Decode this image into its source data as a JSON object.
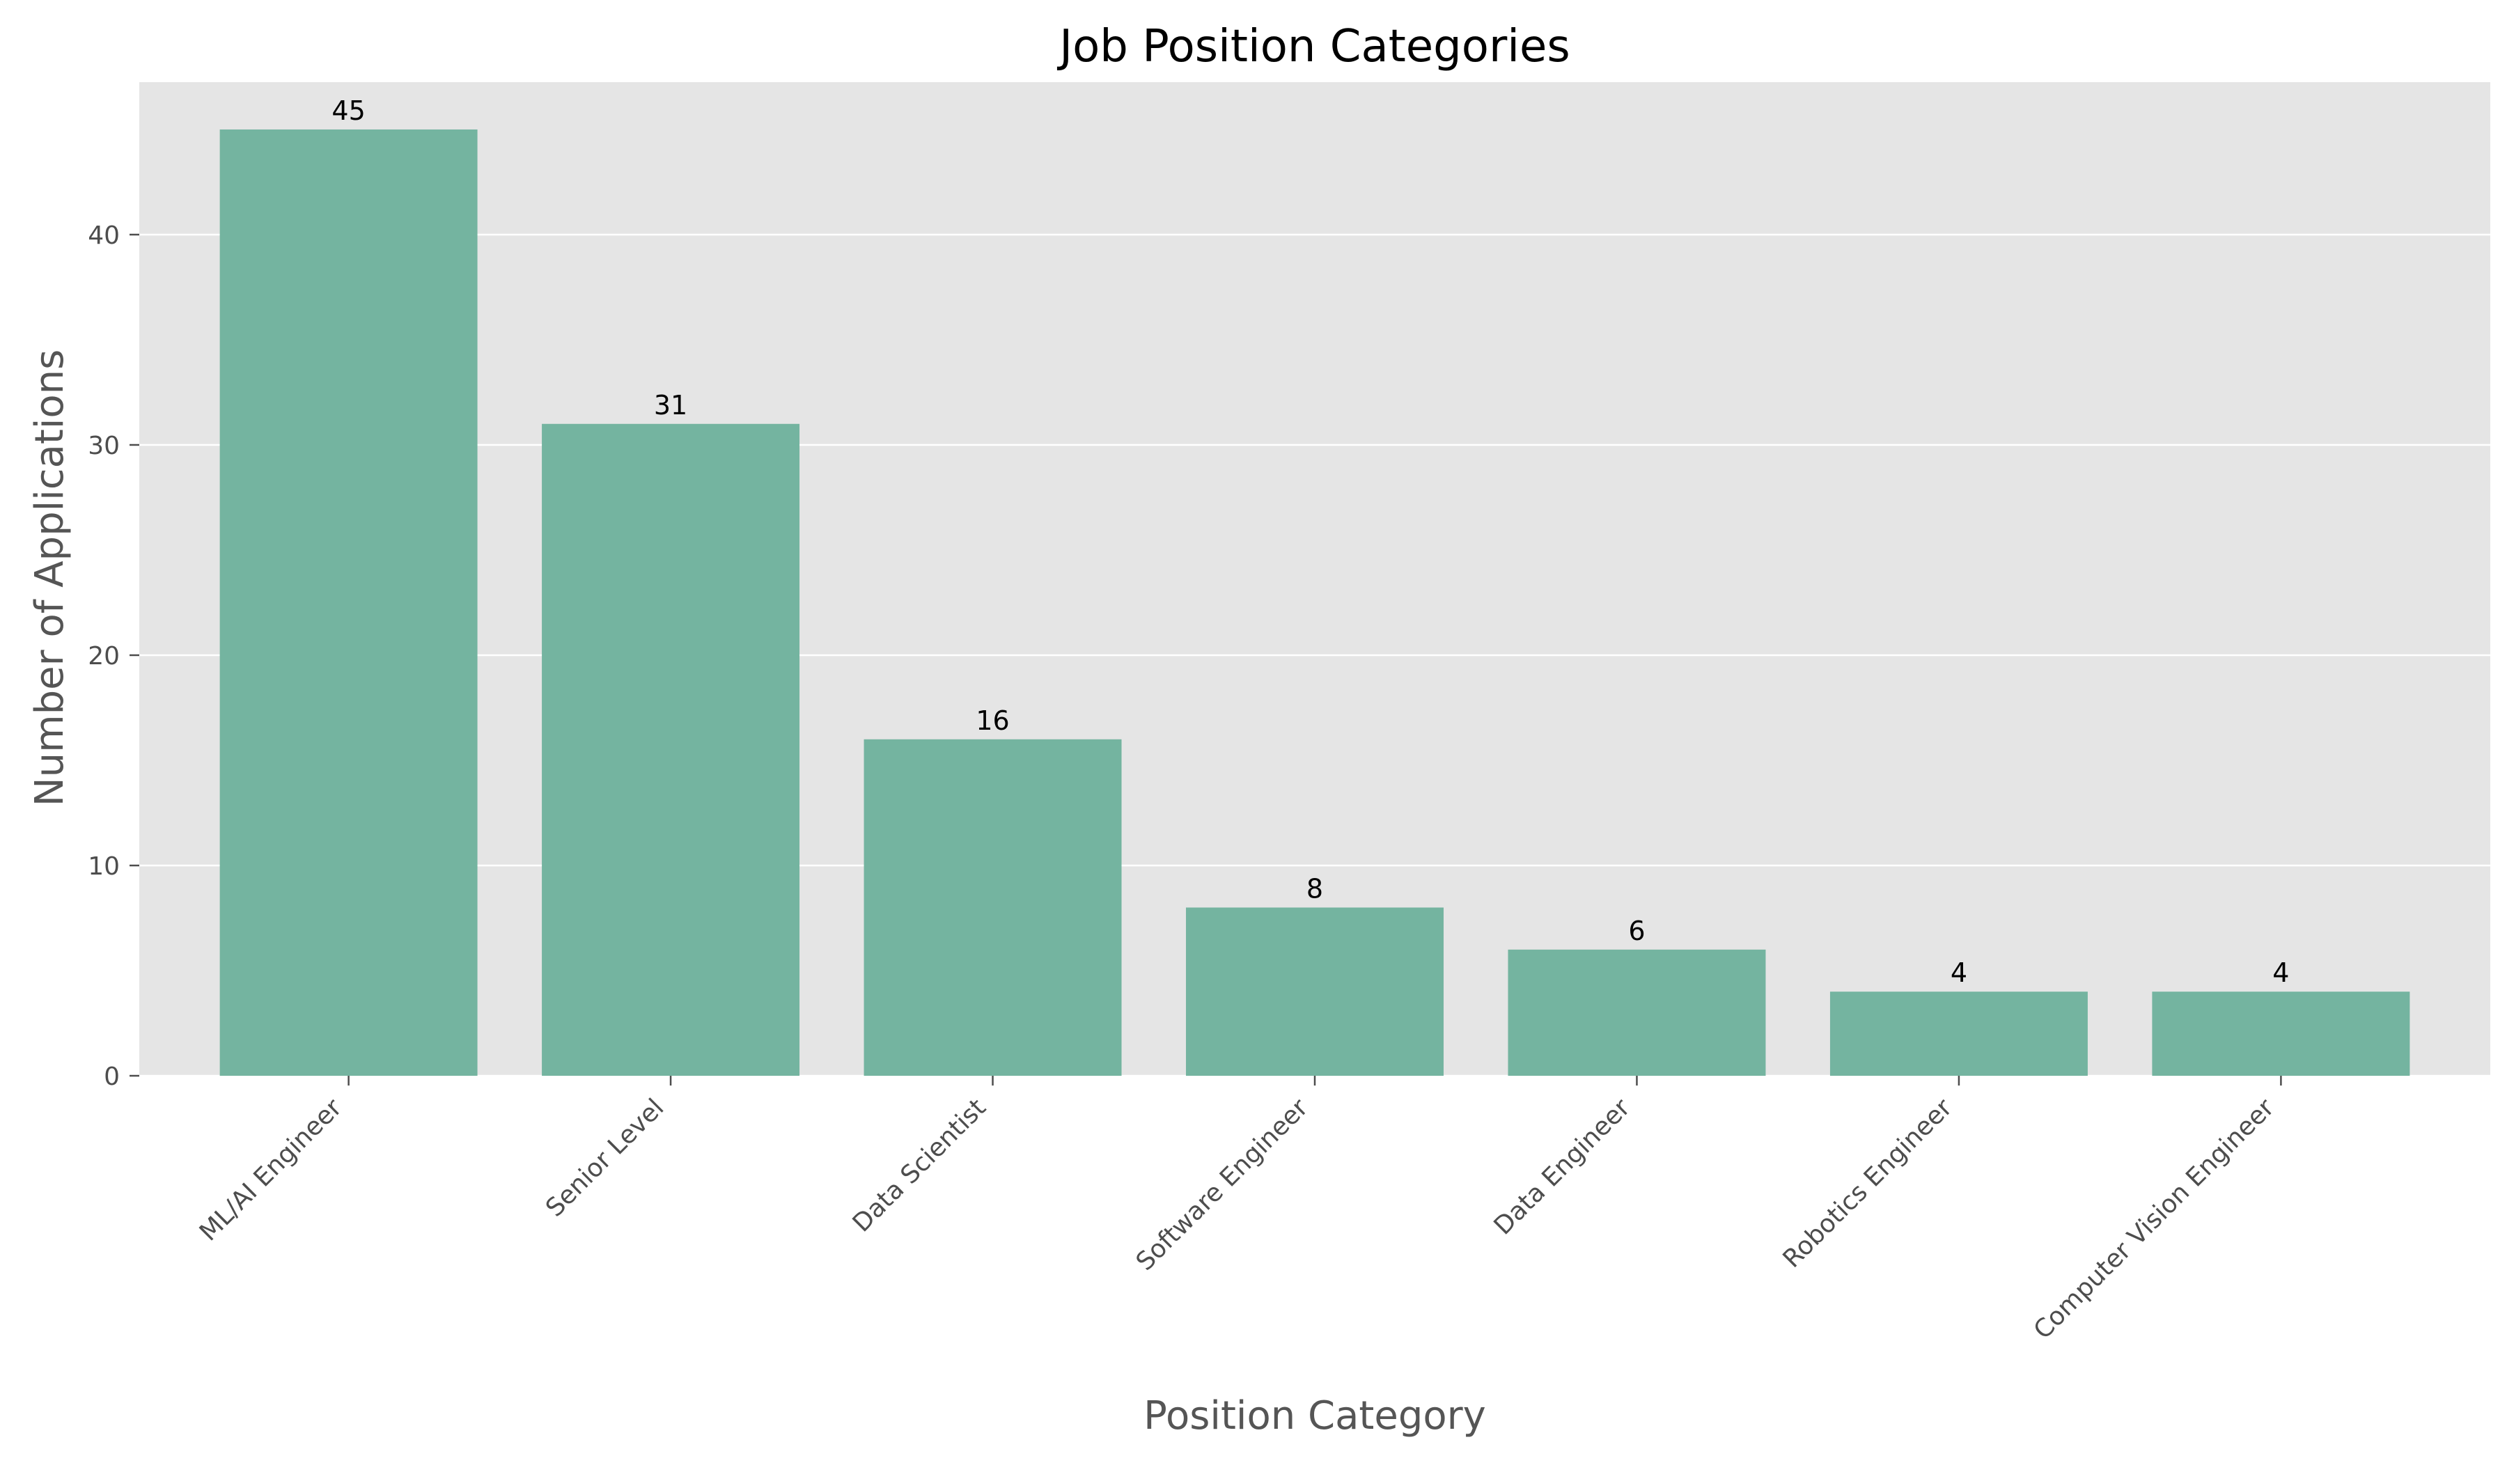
{
  "chart_data": {
    "type": "bar",
    "title": "Job Position Categories",
    "xlabel": "Position Category",
    "ylabel": "Number of Applications",
    "categories": [
      "ML/AI Engineer",
      "Senior Level",
      "Data Scientist",
      "Software Engineer",
      "Data Engineer",
      "Robotics Engineer",
      "Computer Vision Engineer"
    ],
    "values": [
      45,
      31,
      16,
      8,
      6,
      4,
      4
    ],
    "data_labels": [
      "45",
      "31",
      "16",
      "8",
      "6",
      "4",
      "4"
    ],
    "ylim": [
      0,
      47.25
    ],
    "yticks": [
      0,
      10,
      20,
      30,
      40
    ],
    "ytick_labels": [
      "0",
      "10",
      "20",
      "30",
      "40"
    ],
    "grid": "horizontal",
    "legend": "none"
  },
  "colors": {
    "bar": "#74b4a0",
    "plot_background": "#e5e5e5",
    "grid": "#ffffff",
    "tick_text": "#4d4d4d",
    "axis_label": "#555555",
    "title": "#000000",
    "data_label": "#000000"
  }
}
